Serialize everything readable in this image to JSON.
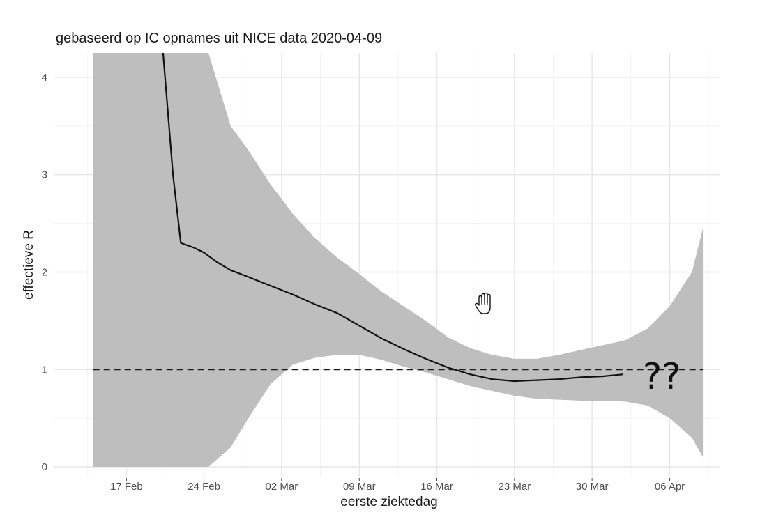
{
  "chart_data": {
    "type": "line",
    "title": "gebaseerd op IC opnames uit NICE data 2020-04-09",
    "xlabel": "eerste ziektedag",
    "ylabel": "effectieve R",
    "x_unit": "days since 01 Mar 2020",
    "xlim": [
      -19.5,
      40.5
    ],
    "ylim": [
      -0.1,
      4.25
    ],
    "x_ticks": [
      {
        "value": -13,
        "label": "17 Feb"
      },
      {
        "value": -6,
        "label": "24 Feb"
      },
      {
        "value": 1,
        "label": "02 Mar"
      },
      {
        "value": 8,
        "label": "09 Mar"
      },
      {
        "value": 15,
        "label": "16 Mar"
      },
      {
        "value": 22,
        "label": "23 Mar"
      },
      {
        "value": 29,
        "label": "30 Mar"
      },
      {
        "value": 36,
        "label": "06 Apr"
      }
    ],
    "y_ticks": [
      {
        "value": 0,
        "label": "0"
      },
      {
        "value": 1,
        "label": "1"
      },
      {
        "value": 2,
        "label": "2"
      },
      {
        "value": 3,
        "label": "3"
      },
      {
        "value": 4,
        "label": "4"
      }
    ],
    "grid": true,
    "series": [
      {
        "name": "effectieve R (median)",
        "color": "#111111",
        "x": [
          -9.8,
          -8.8,
          -8.1,
          -6.9,
          -6.0,
          -4.8,
          -3.6,
          -2.0,
          0.0,
          2.0,
          4.0,
          6.0,
          8.0,
          10.0,
          12.0,
          14.0,
          16.0,
          18.0,
          20.0,
          22.0,
          24.0,
          26.0,
          28.0,
          30.0,
          31.8
        ],
        "y": [
          4.4,
          3.0,
          2.3,
          2.25,
          2.2,
          2.1,
          2.02,
          1.95,
          1.86,
          1.77,
          1.67,
          1.58,
          1.45,
          1.32,
          1.21,
          1.11,
          1.02,
          0.95,
          0.9,
          0.88,
          0.89,
          0.9,
          0.92,
          0.93,
          0.95
        ]
      }
    ],
    "confidence_band": {
      "color": "#bebebf",
      "x": [
        -16.0,
        -12.0,
        -8.0,
        -5.6,
        -3.6,
        -2.0,
        0.0,
        2.0,
        4.0,
        6.0,
        8.0,
        10.0,
        12.0,
        14.0,
        16.0,
        18.0,
        20.0,
        22.0,
        24.0,
        26.0,
        28.0,
        30.0,
        32.0,
        34.0,
        36.0,
        38.0,
        39.0
      ],
      "upper": [
        4.25,
        4.25,
        4.25,
        4.25,
        3.5,
        3.25,
        2.9,
        2.6,
        2.35,
        2.15,
        1.98,
        1.8,
        1.65,
        1.5,
        1.33,
        1.22,
        1.15,
        1.11,
        1.11,
        1.15,
        1.2,
        1.25,
        1.3,
        1.42,
        1.65,
        2.0,
        2.45
      ],
      "lower": [
        0.0,
        0.0,
        0.0,
        0.0,
        0.2,
        0.5,
        0.85,
        1.05,
        1.12,
        1.15,
        1.15,
        1.1,
        1.03,
        0.97,
        0.9,
        0.83,
        0.78,
        0.73,
        0.7,
        0.69,
        0.68,
        0.68,
        0.67,
        0.63,
        0.5,
        0.3,
        0.1
      ]
    },
    "reference_line": {
      "y": 1,
      "x_from": -16.0,
      "x_to": 39.0,
      "style": "dashed"
    },
    "annotations": [
      {
        "text": "??",
        "x": 35.3,
        "y": 0.93
      }
    ]
  }
}
